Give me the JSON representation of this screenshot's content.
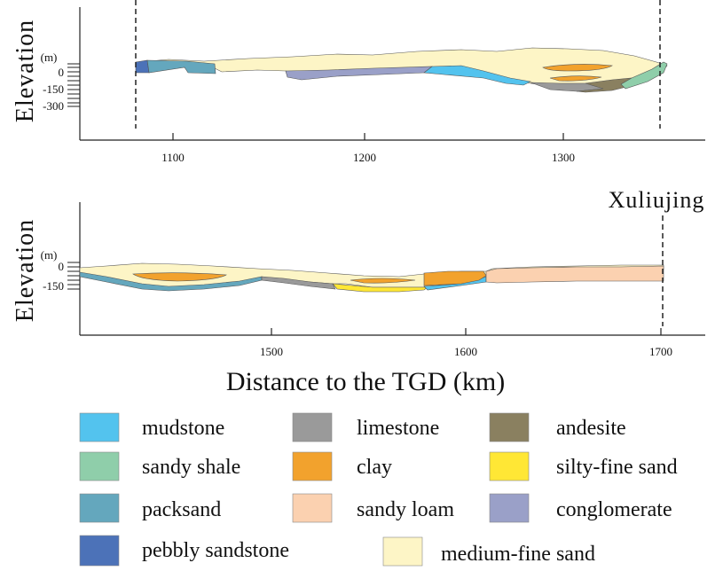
{
  "chart_data": {
    "type": "cross-section",
    "panels": [
      {
        "id": "upper",
        "ylabel": "Elevation",
        "yunit": "(m)",
        "yticks": [
          "0",
          "-150",
          "-300"
        ],
        "xticks": [
          "1100",
          "1200",
          "1300"
        ],
        "xlim": [
          1046,
          1367
        ],
        "markers": [
          1081,
          1354
        ],
        "place_label": ""
      },
      {
        "id": "lower",
        "ylabel": "Elevation",
        "yunit": "(m)",
        "yticks": [
          "0",
          "-150"
        ],
        "xticks": [
          "1500",
          "1600",
          "1700"
        ],
        "xlim": [
          1401,
          1722
        ],
        "markers": [
          1708
        ],
        "place_label": "Xuliujing"
      }
    ],
    "xlabel": "Distance to the  TGD (km)",
    "legend": [
      {
        "label": "mudstone",
        "color": "#53c3ee"
      },
      {
        "label": "limestone",
        "color": "#9a9a9a"
      },
      {
        "label": "andesite",
        "color": "#8a8060"
      },
      {
        "label": "sandy shale",
        "color": "#8fceaa"
      },
      {
        "label": "clay",
        "color": "#f2a22d"
      },
      {
        "label": "silty-fine sand",
        "color": "#ffe735"
      },
      {
        "label": "packsand",
        "color": "#64a7bd"
      },
      {
        "label": "sandy loam",
        "color": "#fbd1b0"
      },
      {
        "label": "conglomerate",
        "color": "#9aa0c8"
      },
      {
        "label": "pebbly sandstone",
        "color": "#4c72b8"
      },
      {
        "label": "medium-fine sand",
        "color": "#fdf5c6"
      }
    ]
  }
}
